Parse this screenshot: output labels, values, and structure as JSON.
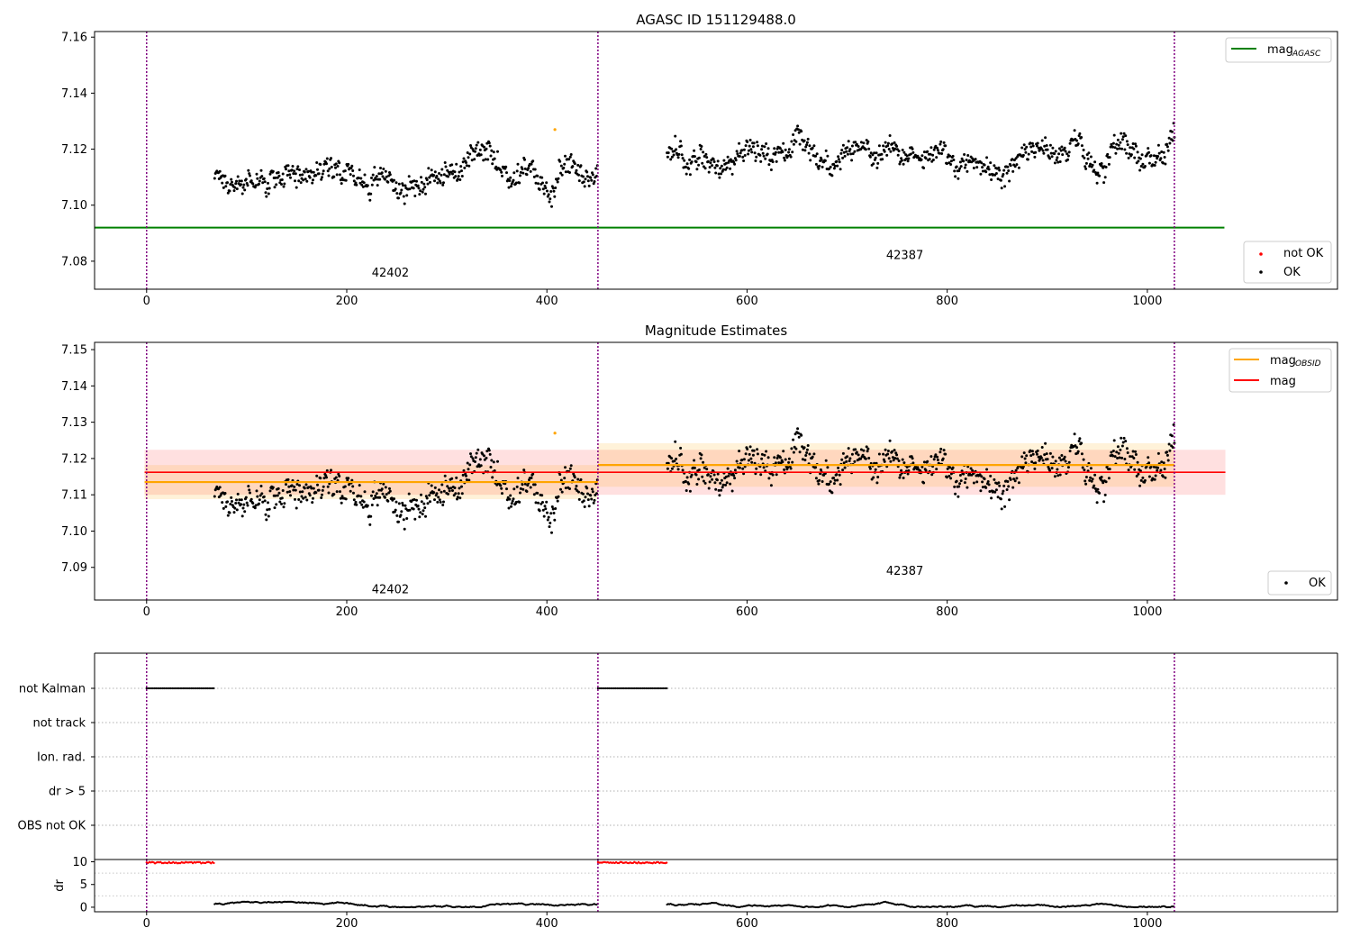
{
  "colors": {
    "ok": "#000000",
    "not_ok": "#ff0000",
    "agasc_line": "#008000",
    "obsid_line": "#ffa500",
    "mag_line": "#ff0000",
    "obs_boundary": "#800080",
    "obsid_band": "#ffa500",
    "mag_band": "#ff0000"
  },
  "chart_data": [
    {
      "type": "scatter",
      "title": "AGASC ID 151129488.0",
      "xlim": [
        -52,
        1190
      ],
      "ylim": [
        7.07,
        7.162
      ],
      "xticks": [
        "0",
        "200",
        "400",
        "600",
        "800",
        "1000"
      ],
      "yticks": [
        "7.08",
        "7.10",
        "7.12",
        "7.14",
        "7.16"
      ],
      "grid": false,
      "obs_boundaries": [
        0,
        451,
        1027
      ],
      "observations": [
        {
          "label": "42402",
          "x": 225,
          "y": 7.0745
        },
        {
          "label": "42387",
          "x": 739,
          "y": 7.0808
        }
      ],
      "mag_agasc": {
        "value": 7.092,
        "x_range": [
          -52,
          1077
        ]
      },
      "series": [
        {
          "name": "OK",
          "x_range": [
            68,
            451
          ],
          "base": 7.1115,
          "amp": 0.012
        },
        {
          "name": "OK",
          "x_range": [
            520,
            1027
          ],
          "base": 7.118,
          "amp": 0.013
        },
        {
          "name": "not OK",
          "x": [],
          "y": []
        }
      ],
      "highlight_points": [
        {
          "x": 408,
          "y": 7.127
        }
      ],
      "legend_upper": {
        "placement": "upper-right",
        "entries": [
          {
            "label": "mag",
            "subscript": "AGASC"
          }
        ]
      },
      "legend_lower": {
        "placement": "lower-right",
        "entries": [
          {
            "label": "not OK"
          },
          {
            "label": "OK"
          }
        ]
      }
    },
    {
      "type": "scatter",
      "title": "Magnitude Estimates",
      "xlim": [
        -52,
        1190
      ],
      "ylim": [
        7.081,
        7.152
      ],
      "xticks": [
        "0",
        "200",
        "400",
        "600",
        "800",
        "1000"
      ],
      "yticks": [
        "7.09",
        "7.10",
        "7.11",
        "7.12",
        "7.13",
        "7.14",
        "7.15"
      ],
      "grid": false,
      "obs_boundaries": [
        0,
        451,
        1027
      ],
      "observations": [
        {
          "label": "42402",
          "x": 225,
          "y": 7.0828
        },
        {
          "label": "42387",
          "x": 739,
          "y": 7.088
        }
      ],
      "mag": {
        "value": 7.1162,
        "band": [
          7.11,
          7.1224
        ],
        "x_range": [
          -2,
          1078
        ]
      },
      "mag_obsid": [
        {
          "value": 7.1135,
          "band": [
            7.1088,
            7.1182
          ],
          "x_range": [
            -2,
            451
          ]
        },
        {
          "value": 7.1182,
          "band": [
            7.1122,
            7.1242
          ],
          "x_range": [
            451,
            1027
          ]
        }
      ],
      "series": [
        {
          "name": "OK",
          "x_range": [
            68,
            451
          ],
          "base": 7.1115,
          "amp": 0.012
        },
        {
          "name": "OK",
          "x_range": [
            520,
            1027
          ],
          "base": 7.118,
          "amp": 0.013
        }
      ],
      "highlight_points": [
        {
          "x": 408,
          "y": 7.127
        }
      ],
      "legend_upper": {
        "placement": "upper-right",
        "entries": [
          {
            "label": "mag",
            "subscript": "OBSID"
          },
          {
            "label": "mag"
          }
        ]
      },
      "legend_lower": {
        "placement": "lower-right",
        "entries": [
          {
            "label": "OK"
          }
        ]
      }
    },
    {
      "type": "scatter",
      "title": "",
      "xlim": [
        -52,
        1190
      ],
      "categories": [
        "not Kalman",
        "not track",
        "Ion. rad.",
        "dr > 5",
        "OBS not OK"
      ],
      "obs_boundaries": [
        0,
        451,
        1027
      ],
      "flags": [
        {
          "category": "not Kalman",
          "x_ranges": [
            [
              0,
              68
            ],
            [
              451,
              520
            ]
          ]
        }
      ],
      "grid": true
    },
    {
      "type": "scatter",
      "title": "",
      "xlim": [
        -52,
        1190
      ],
      "ylim": [
        -1,
        10.5
      ],
      "ylabel": "dr",
      "yticks": [
        "0",
        "5",
        "10"
      ],
      "xticks": [
        "0",
        "200",
        "400",
        "600",
        "800",
        "1000"
      ],
      "obs_boundaries": [
        0,
        451,
        1027
      ],
      "dr_capped": {
        "value": 9.8,
        "x_ranges": [
          [
            0,
            68
          ],
          [
            451,
            520
          ]
        ]
      },
      "dr_series": [
        {
          "x_range": [
            68,
            451
          ],
          "y_range": [
            0.0,
            1.2
          ]
        },
        {
          "x_range": [
            520,
            1027
          ],
          "y_range": [
            0.0,
            1.2
          ]
        }
      ]
    }
  ]
}
